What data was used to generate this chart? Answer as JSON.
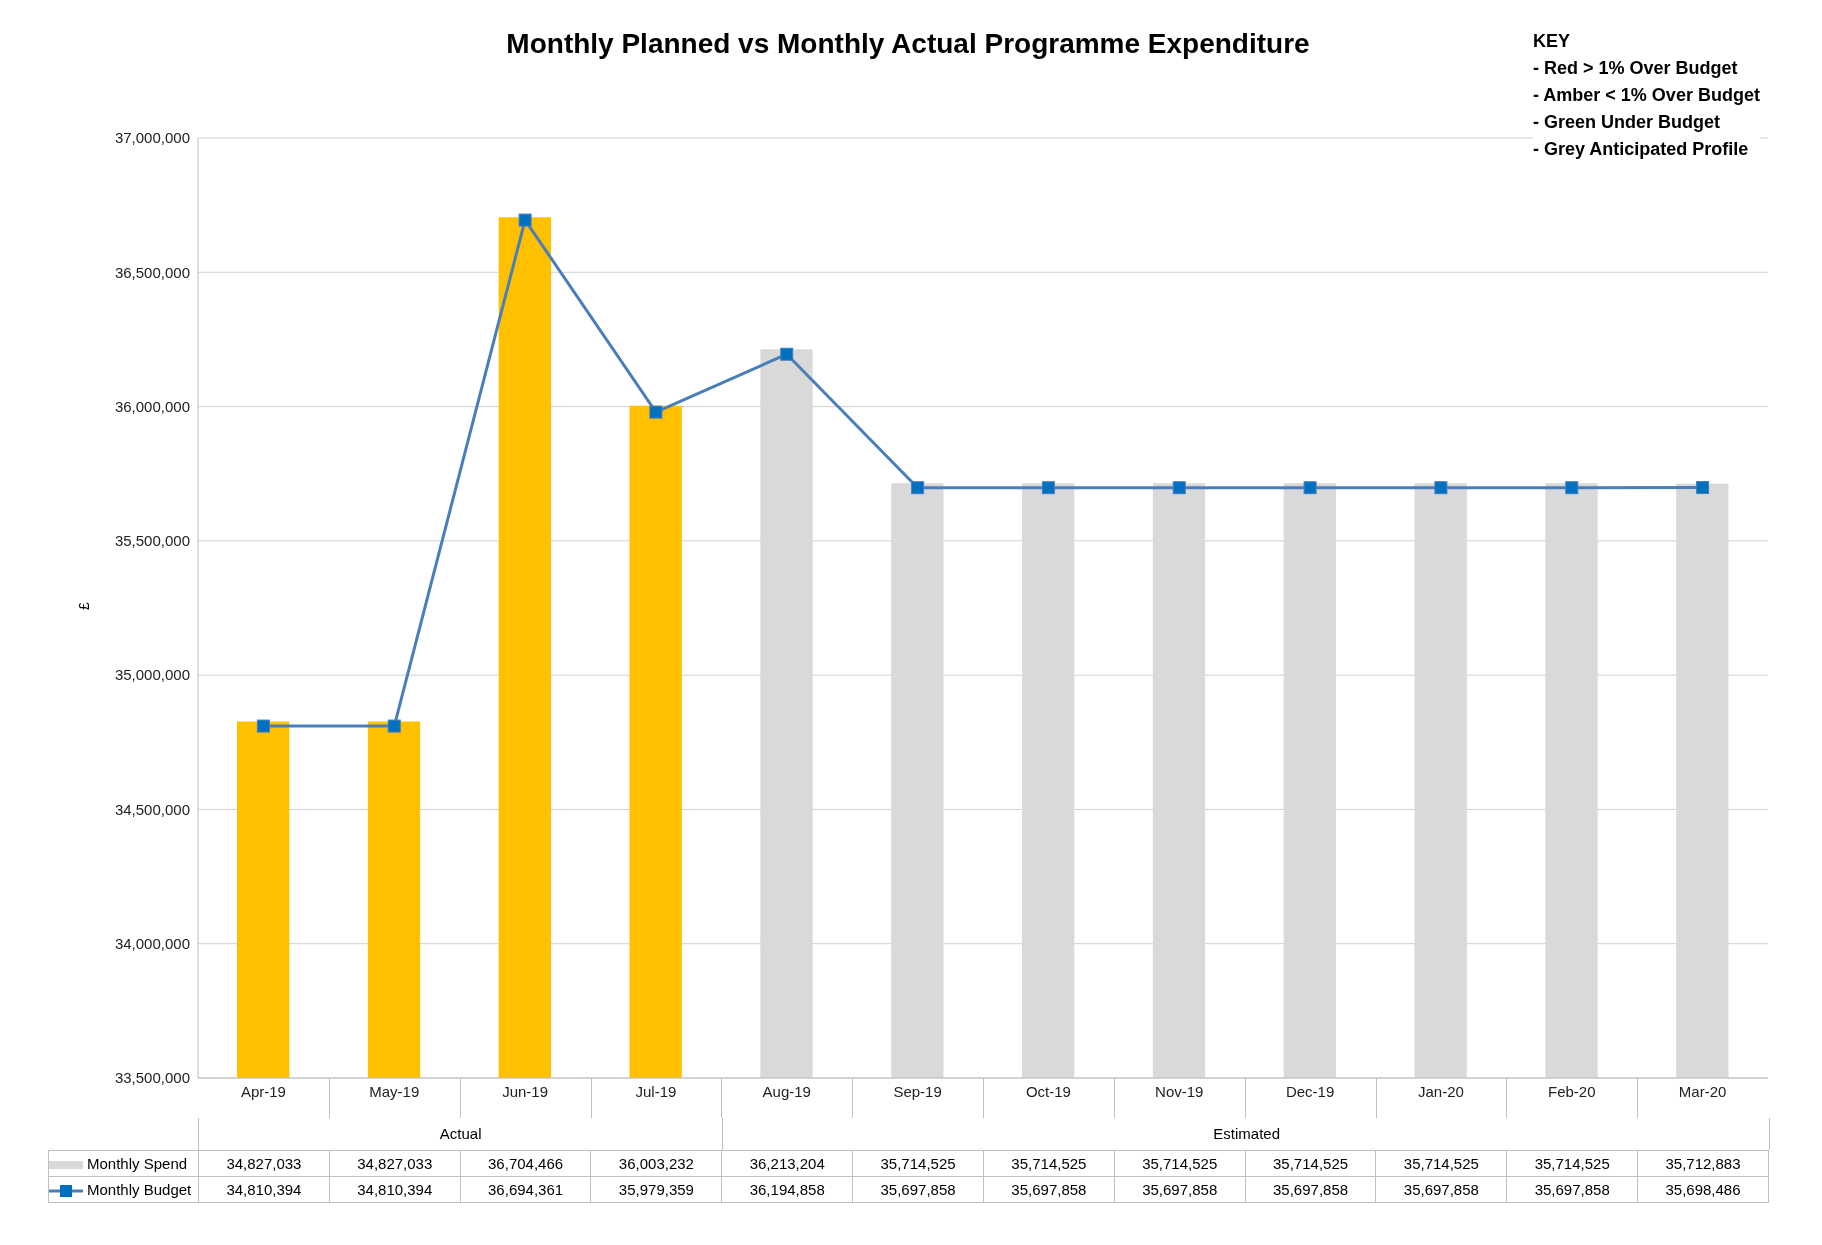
{
  "chart_data": {
    "type": "bar",
    "title": "Monthly Planned vs Monthly Actual Programme Expenditure",
    "ylabel": "£",
    "categories": [
      "Apr-19",
      "May-19",
      "Jun-19",
      "Jul-19",
      "Aug-19",
      "Sep-19",
      "Oct-19",
      "Nov-19",
      "Dec-19",
      "Jan-20",
      "Feb-20",
      "Mar-20"
    ],
    "series": [
      {
        "name": "Monthly Spend",
        "color": "#d9d9d9",
        "colors": [
          "#ffc000",
          "#ffc000",
          "#ffc000",
          "#ffc000",
          "#d9d9d9",
          "#d9d9d9",
          "#d9d9d9",
          "#d9d9d9",
          "#d9d9d9",
          "#d9d9d9",
          "#d9d9d9",
          "#d9d9d9"
        ],
        "values": [
          34827033,
          34827033,
          36704466,
          36003232,
          36213204,
          35714525,
          35714525,
          35714525,
          35714525,
          35714525,
          35714525,
          35712883
        ],
        "value_labels": [
          "34,827,033",
          "34,827,033",
          "36,704,466",
          "36,003,232",
          "36,213,204",
          "35,714,525",
          "35,714,525",
          "35,714,525",
          "35,714,525",
          "35,714,525",
          "35,714,525",
          "35,712,883"
        ]
      },
      {
        "name": "Monthly Budget",
        "type": "line",
        "color": "#4a7ebb",
        "marker": "square",
        "line_style": "solid",
        "values": [
          34810394,
          34810394,
          36694361,
          35979359,
          36194858,
          35697858,
          35697858,
          35697858,
          35697858,
          35697858,
          35697858,
          35698486
        ],
        "value_labels": [
          "34,810,394",
          "34,810,394",
          "36,694,361",
          "35,979,359",
          "36,194,858",
          "35,697,858",
          "35,697,858",
          "35,697,858",
          "35,697,858",
          "35,697,858",
          "35,697,858",
          "35,698,486"
        ]
      }
    ],
    "ylim": [
      33500000,
      37000000
    ],
    "yticks": [
      {
        "value": 33500000,
        "label": "33,500,000"
      },
      {
        "value": 34000000,
        "label": "34,000,000"
      },
      {
        "value": 34500000,
        "label": "34,500,000"
      },
      {
        "value": 35000000,
        "label": "35,000,000"
      },
      {
        "value": 35500000,
        "label": "35,500,000"
      },
      {
        "value": 36000000,
        "label": "36,000,000"
      },
      {
        "value": 36500000,
        "label": "36,500,000"
      },
      {
        "value": 37000000,
        "label": "37,000,000"
      }
    ],
    "grid": "y",
    "legend": "bottom",
    "annotations": [
      "KEY",
      "- Red > 1% Over Budget",
      "- Amber < 1% Over Budget",
      "- Green Under Budget",
      "- Grey Anticipated Profile",
      "Actual",
      "Estimated"
    ]
  }
}
